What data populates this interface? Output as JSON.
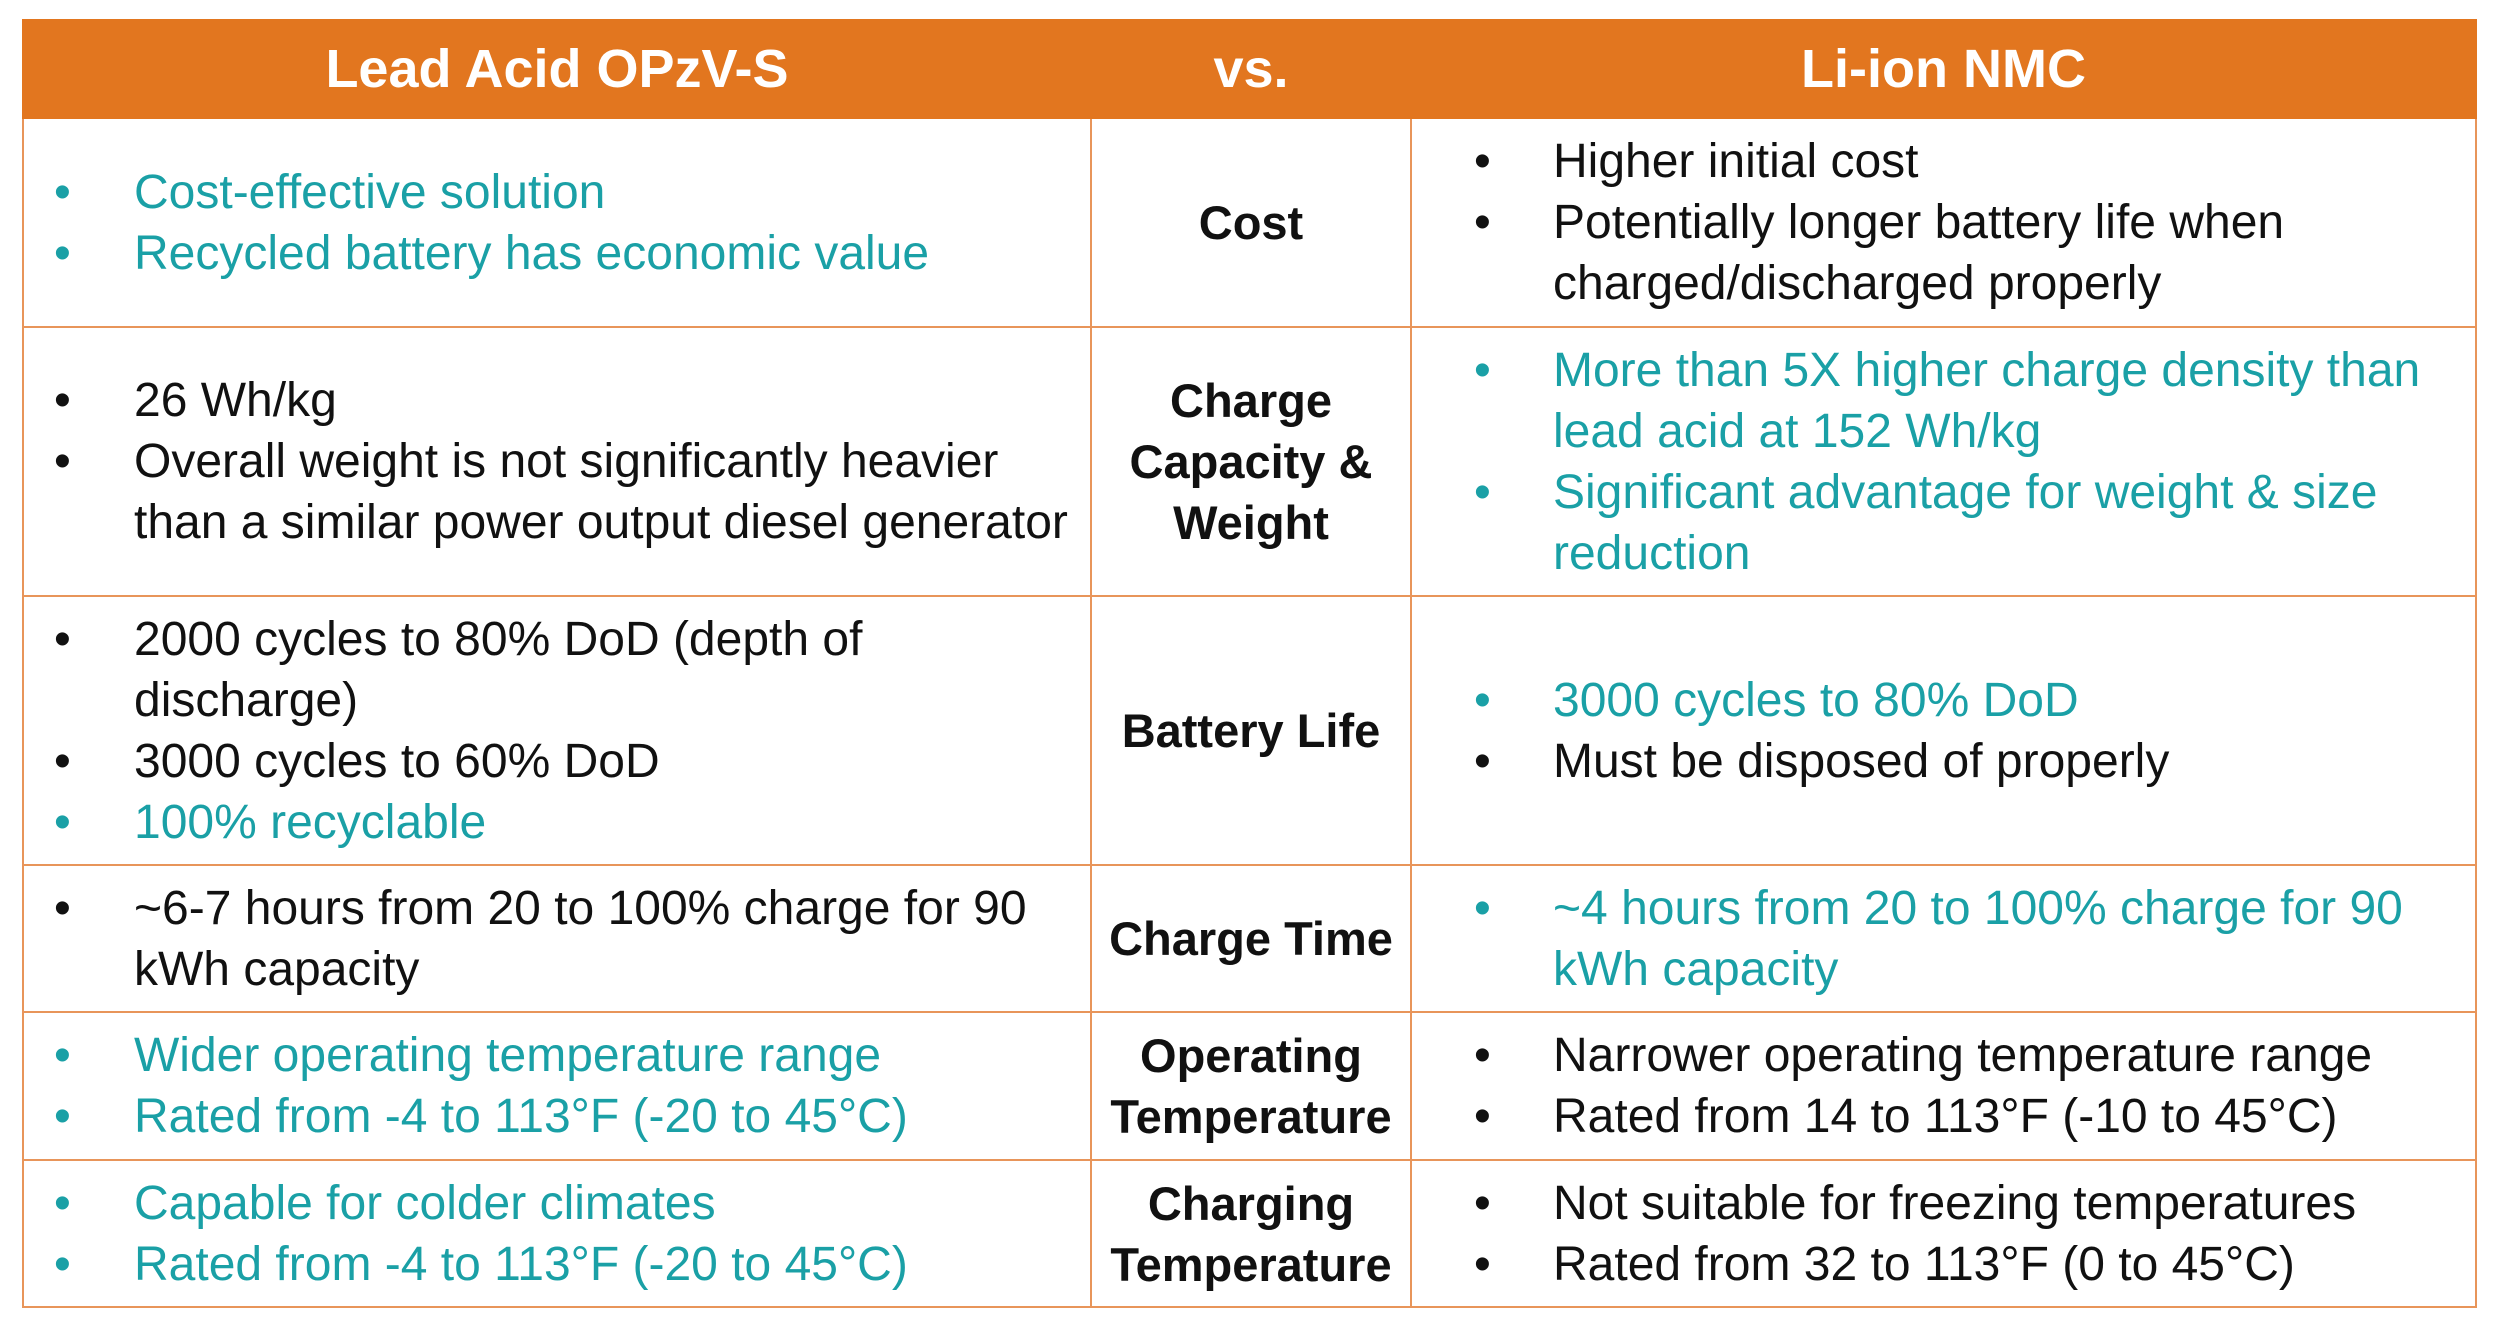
{
  "header": [
    "Lead Acid OPzV-S",
    "vs.",
    "Li-ion NMC"
  ],
  "rows": [
    {
      "label": "Cost",
      "left": [
        {
          "text": "Cost-effective solution",
          "highlight": true
        },
        {
          "text": "Recycled battery has economic value",
          "highlight": true
        }
      ],
      "right": [
        {
          "text": "Higher initial cost",
          "highlight": false
        },
        {
          "text": "Potentially longer battery life when charged/discharged properly",
          "highlight": false
        }
      ]
    },
    {
      "label": "Charge Capacity & Weight",
      "left": [
        {
          "text": "26 Wh/kg",
          "highlight": false
        },
        {
          "text": "Overall weight is not significantly heavier than a similar power output diesel generator",
          "highlight": false
        }
      ],
      "right": [
        {
          "text": "More than 5X higher charge density than lead acid at 152 Wh/kg",
          "highlight": true
        },
        {
          "text": "Significant advantage for weight & size reduction",
          "highlight": true
        }
      ]
    },
    {
      "label": "Battery Life",
      "left": [
        {
          "text": "2000 cycles to 80% DoD (depth of discharge)",
          "highlight": false
        },
        {
          "text": "3000 cycles to 60% DoD",
          "highlight": false
        },
        {
          "text": "100% recyclable",
          "highlight": true
        }
      ],
      "right": [
        {
          "text": "3000 cycles to 80% DoD",
          "highlight": true
        },
        {
          "text": "Must be disposed of properly",
          "highlight": false
        }
      ]
    },
    {
      "label": "Charge Time",
      "left": [
        {
          "text": "~6-7 hours from 20 to 100% charge for 90 kWh capacity",
          "highlight": false
        }
      ],
      "right": [
        {
          "text": "~4 hours from 20 to 100% charge for 90 kWh capacity",
          "highlight": true
        }
      ]
    },
    {
      "label": "Operating Temperature",
      "left": [
        {
          "text": "Wider operating temperature range",
          "highlight": true
        },
        {
          "text": "Rated from -4 to 113°F (-20 to 45°C)",
          "highlight": true
        }
      ],
      "right": [
        {
          "text": "Narrower operating temperature range",
          "highlight": false
        },
        {
          "text": "Rated from 14 to 113°F (-10 to 45°C)",
          "highlight": false
        }
      ]
    },
    {
      "label": "Charging Temperature",
      "left": [
        {
          "text": "Capable for colder climates",
          "highlight": true
        },
        {
          "text": "Rated from -4 to 113°F (-20 to 45°C)",
          "highlight": true
        }
      ],
      "right": [
        {
          "text": "Not suitable for freezing temperatures",
          "highlight": false
        },
        {
          "text": "Rated from 32 to 113°F (0 to 45°C)",
          "highlight": false
        }
      ]
    }
  ]
}
